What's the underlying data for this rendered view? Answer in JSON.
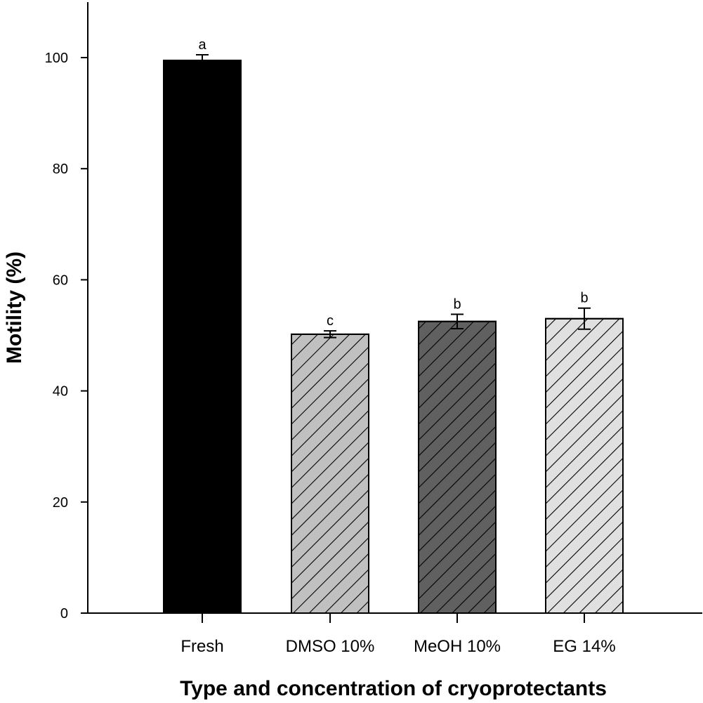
{
  "chart_data": {
    "type": "bar",
    "title": "",
    "xlabel": "Type and concentration of cryoprotectants",
    "ylabel": "Motility (%)",
    "ylim": [
      0,
      110
    ],
    "yticks": [
      0,
      20,
      40,
      60,
      80,
      100
    ],
    "grid": false,
    "legend": "none",
    "categories": [
      "Fresh",
      "DMSO 10%",
      "MeOH 10%",
      "EG 14%"
    ],
    "values": [
      99.5,
      50.2,
      52.5,
      53.0
    ],
    "errors": [
      1.0,
      0.6,
      1.3,
      1.9
    ],
    "significance_labels": [
      "a",
      "c",
      "b",
      "b"
    ],
    "fills": [
      {
        "color": "#000000",
        "hatch": false
      },
      {
        "color": "#c0c0c0",
        "hatch": true
      },
      {
        "color": "#606060",
        "hatch": true
      },
      {
        "color": "#e0e0e0",
        "hatch": true
      }
    ]
  }
}
